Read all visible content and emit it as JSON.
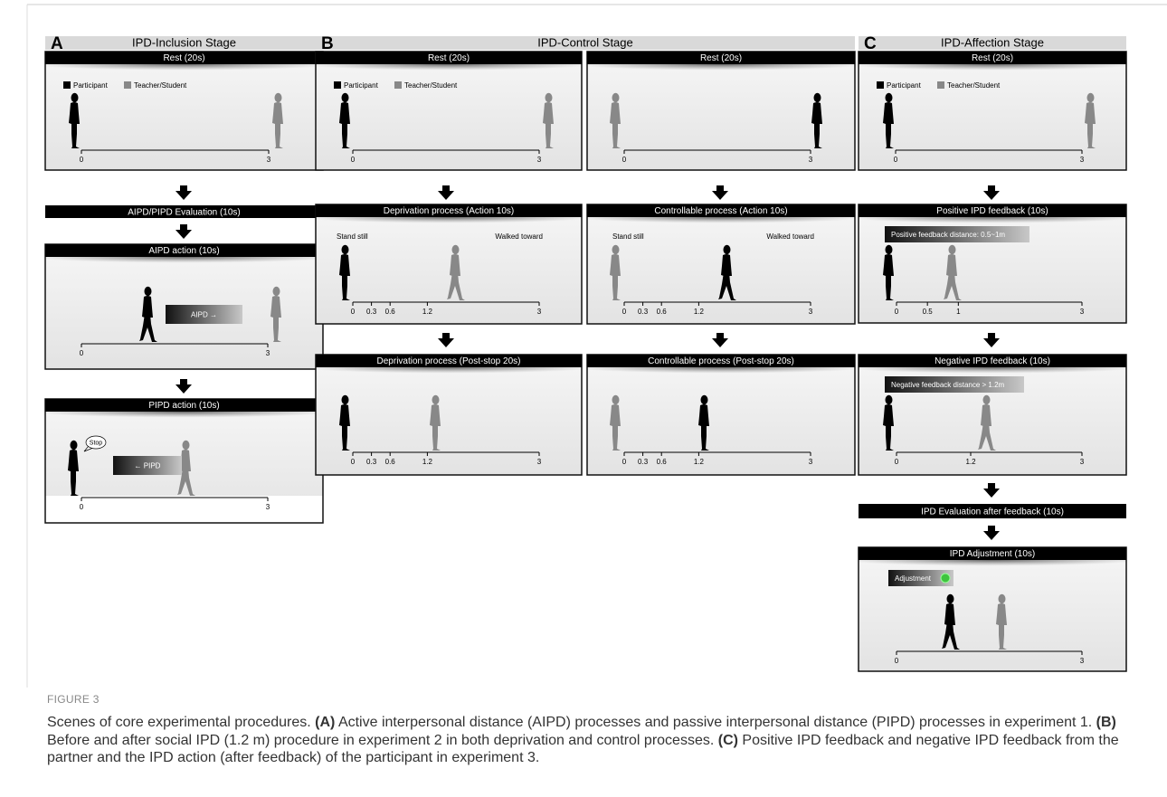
{
  "panels": [
    {
      "letter": "A",
      "title": "IPD-Inclusion Stage"
    },
    {
      "letter": "B",
      "title": "IPD-Control Stage"
    },
    {
      "letter": "C",
      "title": "IPD-Affection Stage"
    }
  ],
  "legend": [
    "Participant",
    "Teacher/Student"
  ],
  "bars": [
    "AIPD/PIPD Evaluation (10s)",
    "IPD Evaluation after feedback (10s)"
  ],
  "boxes": [
    {
      "header": "Rest (20s)",
      "ticks": [
        0,
        3
      ]
    },
    {
      "header": "AIPD action (10s)",
      "ticks": [
        0,
        3
      ],
      "tag": "AIPD →"
    },
    {
      "header": "PIPD action (10s)",
      "ticks": [
        0,
        3
      ],
      "tag": "← PIPD",
      "speech": "Stop"
    },
    {
      "header": "Rest (20s)",
      "ticks": [
        0,
        3
      ]
    },
    {
      "header": "Rest (20s)",
      "ticks": [
        0,
        3
      ]
    },
    {
      "header": "Deprivation process (Action 10s)",
      "ticks": [
        0,
        0.3,
        0.6,
        1.2,
        3
      ],
      "notes": [
        "Stand still",
        "Walked toward"
      ]
    },
    {
      "header": "Controllable process (Action 10s)",
      "ticks": [
        0,
        0.3,
        0.6,
        1.2,
        3
      ],
      "notes": [
        "Stand still",
        "Walked toward"
      ]
    },
    {
      "header": "Deprivation process (Post-stop 20s)",
      "ticks": [
        0,
        0.3,
        0.6,
        1.2,
        3
      ]
    },
    {
      "header": "Controllable process (Post-stop 20s)",
      "ticks": [
        0,
        0.3,
        0.6,
        1.2,
        3
      ]
    },
    {
      "header": "Rest (20s)",
      "ticks": [
        0,
        3
      ]
    },
    {
      "header": "Positive IPD feedback (10s)",
      "ticks": [
        0,
        0.5,
        1,
        3
      ],
      "tag": "Positive feedback distance: 0.5~1m"
    },
    {
      "header": "Negative IPD feedback (10s)",
      "ticks": [
        0,
        1.2,
        3
      ],
      "tag": "Negative feedback distance > 1.2m"
    },
    {
      "header": "IPD Adjustment (10s)",
      "ticks": [
        0,
        3
      ],
      "tag": "Adjustment"
    }
  ],
  "caption": {
    "label": "FIGURE 3",
    "parts": [
      "Scenes of core experimental procedures. ",
      "(A)",
      " Active interpersonal distance (AIPD) processes and passive interpersonal distance (PIPD) processes in experiment 1. ",
      "(B)",
      " Before and after social IPD (1.2 m) procedure in experiment 2 in both deprivation and control processes. ",
      "(C)",
      " Positive IPD feedback and negative IPD feedback from the partner and the IPD action (after feedback) of the participant in experiment 3."
    ]
  }
}
